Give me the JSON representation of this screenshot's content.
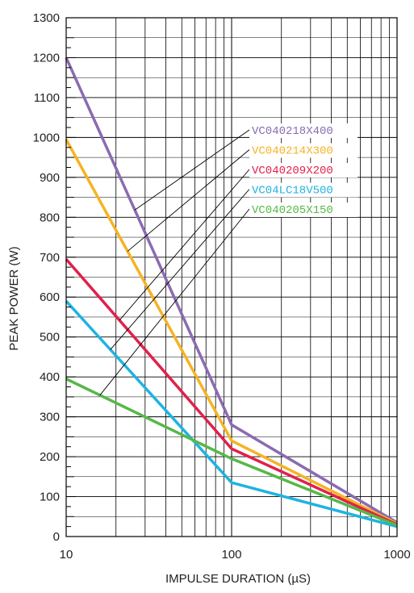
{
  "chart_data": {
    "type": "line",
    "title": "",
    "xlabel": "IMPULSE DURATION (µS)",
    "ylabel": "PEAK POWER (W)",
    "xscale": "log",
    "xlim": [
      10,
      1000
    ],
    "ylim": [
      0,
      1300
    ],
    "grid": true,
    "legend_placement": "callout labels, upper-right",
    "x_ticks": [
      10,
      100,
      1000
    ],
    "x_tick_labels": [
      "10",
      "100",
      "1000"
    ],
    "y_ticks": [
      0,
      100,
      200,
      300,
      400,
      500,
      600,
      700,
      800,
      900,
      1000,
      1100,
      1200,
      1300
    ],
    "y_tick_labels": [
      "0",
      "100",
      "200",
      "300",
      "400",
      "500",
      "600",
      "700",
      "800",
      "900",
      "1000",
      "1100",
      "1200",
      "1300"
    ],
    "x": [
      10,
      100,
      1000
    ],
    "series": [
      {
        "name": "VC040218X400",
        "color": "#8b6bb1",
        "values": [
          1200,
          280,
          35
        ]
      },
      {
        "name": "VC040214X300",
        "color": "#f5b325",
        "values": [
          995,
          240,
          32
        ]
      },
      {
        "name": "VC040209X200",
        "color": "#e0214b",
        "values": [
          695,
          220,
          30
        ]
      },
      {
        "name": "VC04LC18V500",
        "color": "#1fb3e0",
        "values": [
          590,
          135,
          25
        ]
      },
      {
        "name": "VC040205X150",
        "color": "#56b848",
        "values": [
          395,
          195,
          28
        ]
      }
    ]
  }
}
